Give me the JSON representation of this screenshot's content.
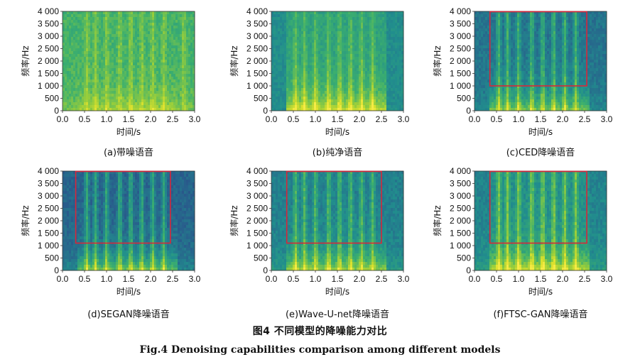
{
  "figure": {
    "caption_cn": "图4   不同模型的降噪能力对比",
    "caption_en": "Fig.4    Denoising capabilities comparison among different models"
  },
  "axes": {
    "ylabel": "频率/Hz",
    "xlabel": "时间/s",
    "yticks": [
      "4 000",
      "3 500",
      "3 000",
      "2 500",
      "2 000",
      "1 500",
      "1 000",
      "500",
      "0"
    ],
    "xticks": [
      "0.0",
      "0.5",
      "1.0",
      "1.5",
      "2.0",
      "2.5",
      "3.0"
    ]
  },
  "panels": [
    {
      "caption": "(a)带噪语音",
      "variant": "noisy",
      "box": false
    },
    {
      "caption": "(b)纯净语音",
      "variant": "clean",
      "box": false
    },
    {
      "caption": "(c)CED降噪语音",
      "variant": "ced",
      "box": true
    },
    {
      "caption": "(d)SEGAN降噪语音",
      "variant": "segan",
      "box": true
    },
    {
      "caption": "(e)Wave-U-net降噪语音",
      "variant": "waveunet",
      "box": true
    },
    {
      "caption": "(f)FTSC-GAN降噪语音",
      "variant": "ftsc",
      "box": true
    }
  ],
  "chart_data": [
    {
      "type": "heatmap",
      "title": "(a)带噪语音",
      "xlabel": "时间/s",
      "ylabel": "频率/Hz",
      "xlim": [
        0,
        3
      ],
      "ylim": [
        0,
        4000
      ]
    },
    {
      "type": "heatmap",
      "title": "(b)纯净语音",
      "xlabel": "时间/s",
      "ylabel": "频率/Hz",
      "xlim": [
        0,
        3
      ],
      "ylim": [
        0,
        4000
      ]
    },
    {
      "type": "heatmap",
      "title": "(c)CED降噪语音",
      "xlabel": "时间/s",
      "ylabel": "频率/Hz",
      "xlim": [
        0,
        3
      ],
      "ylim": [
        0,
        4000
      ],
      "highlight_box": {
        "t": [
          0.35,
          2.55
        ],
        "f": [
          1000,
          4000
        ]
      }
    },
    {
      "type": "heatmap",
      "title": "(d)SEGAN降噪语音",
      "xlabel": "时间/s",
      "ylabel": "频率/Hz",
      "xlim": [
        0,
        3
      ],
      "ylim": [
        0,
        4000
      ],
      "highlight_box": {
        "t": [
          0.3,
          2.45
        ],
        "f": [
          1100,
          4000
        ]
      }
    },
    {
      "type": "heatmap",
      "title": "(e)Wave-U-net降噪语音",
      "xlabel": "时间/s",
      "ylabel": "频率/Hz",
      "xlim": [
        0,
        3
      ],
      "ylim": [
        0,
        4000
      ],
      "highlight_box": {
        "t": [
          0.35,
          2.5
        ],
        "f": [
          1100,
          4000
        ]
      }
    },
    {
      "type": "heatmap",
      "title": "(f)FTSC-GAN降噪语音",
      "xlabel": "时间/s",
      "ylabel": "频率/Hz",
      "xlim": [
        0,
        3
      ],
      "ylim": [
        0,
        4000
      ],
      "highlight_box": {
        "t": [
          0.35,
          2.55
        ],
        "f": [
          1100,
          4000
        ]
      }
    }
  ]
}
